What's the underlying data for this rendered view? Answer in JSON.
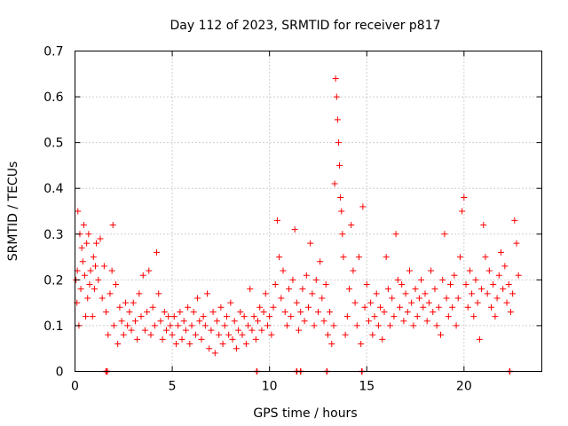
{
  "chart_data": {
    "type": "scatter",
    "title": "Day 112 of 2023, SRMTID for receiver p817",
    "xlabel": "GPS time / hours",
    "ylabel": "SRMTID / TECUs",
    "xlim": [
      0,
      24
    ],
    "ylim": [
      0,
      0.7
    ],
    "xticks": [
      0,
      5,
      10,
      15,
      20
    ],
    "yticks": [
      0,
      0.1,
      0.2,
      0.3,
      0.4,
      0.5,
      0.6,
      0.7
    ],
    "xtick_labels": [
      "0",
      "5",
      "10",
      "15",
      "20"
    ],
    "ytick_labels": [
      "0",
      "0.1",
      "0.2",
      "0.3",
      "0.4",
      "0.5",
      "0.6",
      "0.7"
    ],
    "grid": true,
    "marker": "+",
    "color": "#ff0000",
    "series": [
      {
        "name": "SRMTID",
        "points": [
          [
            0.05,
            0.2
          ],
          [
            0.1,
            0.15
          ],
          [
            0.12,
            0.22
          ],
          [
            0.15,
            0.35
          ],
          [
            0.2,
            0.1
          ],
          [
            0.25,
            0.3
          ],
          [
            0.3,
            0.18
          ],
          [
            0.35,
            0.27
          ],
          [
            0.4,
            0.24
          ],
          [
            0.45,
            0.32
          ],
          [
            0.5,
            0.21
          ],
          [
            0.55,
            0.12
          ],
          [
            0.6,
            0.28
          ],
          [
            0.65,
            0.16
          ],
          [
            0.7,
            0.3
          ],
          [
            0.75,
            0.19
          ],
          [
            0.8,
            0.22
          ],
          [
            0.9,
            0.12
          ],
          [
            0.95,
            0.25
          ],
          [
            1.0,
            0.18
          ],
          [
            1.05,
            0.23
          ],
          [
            1.1,
            0.28
          ],
          [
            1.2,
            0.2
          ],
          [
            1.3,
            0.29
          ],
          [
            1.4,
            0.16
          ],
          [
            1.5,
            0.23
          ],
          [
            1.6,
            0.13
          ],
          [
            1.7,
            0.08
          ],
          [
            1.8,
            0.17
          ],
          [
            1.9,
            0.22
          ],
          [
            1.95,
            0.32
          ],
          [
            2.0,
            0.1
          ],
          [
            2.1,
            0.19
          ],
          [
            2.2,
            0.06
          ],
          [
            2.3,
            0.14
          ],
          [
            2.4,
            0.11
          ],
          [
            2.5,
            0.08
          ],
          [
            2.6,
            0.15
          ],
          [
            2.7,
            0.1
          ],
          [
            2.8,
            0.13
          ],
          [
            2.9,
            0.09
          ],
          [
            3.0,
            0.15
          ],
          [
            3.1,
            0.11
          ],
          [
            3.2,
            0.07
          ],
          [
            3.3,
            0.17
          ],
          [
            3.4,
            0.12
          ],
          [
            3.5,
            0.21
          ],
          [
            3.6,
            0.09
          ],
          [
            3.7,
            0.13
          ],
          [
            3.8,
            0.22
          ],
          [
            3.9,
            0.08
          ],
          [
            4.0,
            0.14
          ],
          [
            4.1,
            0.1
          ],
          [
            4.2,
            0.26
          ],
          [
            4.3,
            0.17
          ],
          [
            4.4,
            0.11
          ],
          [
            4.5,
            0.07
          ],
          [
            4.6,
            0.13
          ],
          [
            4.7,
            0.09
          ],
          [
            4.8,
            0.12
          ],
          [
            4.9,
            0.1
          ],
          [
            5.0,
            0.08
          ],
          [
            5.1,
            0.12
          ],
          [
            5.2,
            0.06
          ],
          [
            5.3,
            0.1
          ],
          [
            5.4,
            0.13
          ],
          [
            5.5,
            0.07
          ],
          [
            5.6,
            0.11
          ],
          [
            5.7,
            0.09
          ],
          [
            5.8,
            0.14
          ],
          [
            5.9,
            0.06
          ],
          [
            6.0,
            0.1
          ],
          [
            6.1,
            0.13
          ],
          [
            6.2,
            0.08
          ],
          [
            6.3,
            0.16
          ],
          [
            6.4,
            0.11
          ],
          [
            6.5,
            0.07
          ],
          [
            6.6,
            0.12
          ],
          [
            6.7,
            0.1
          ],
          [
            6.8,
            0.17
          ],
          [
            6.9,
            0.05
          ],
          [
            7.0,
            0.09
          ],
          [
            7.1,
            0.13
          ],
          [
            7.2,
            0.04
          ],
          [
            7.3,
            0.11
          ],
          [
            7.4,
            0.08
          ],
          [
            7.5,
            0.14
          ],
          [
            7.6,
            0.06
          ],
          [
            7.7,
            0.1
          ],
          [
            7.8,
            0.12
          ],
          [
            7.9,
            0.08
          ],
          [
            8.0,
            0.15
          ],
          [
            8.1,
            0.07
          ],
          [
            8.2,
            0.11
          ],
          [
            8.3,
            0.05
          ],
          [
            8.4,
            0.09
          ],
          [
            8.5,
            0.13
          ],
          [
            8.6,
            0.08
          ],
          [
            8.7,
            0.12
          ],
          [
            8.8,
            0.06
          ],
          [
            8.9,
            0.1
          ],
          [
            9.0,
            0.18
          ],
          [
            9.1,
            0.09
          ],
          [
            9.2,
            0.12
          ],
          [
            9.3,
            0.07
          ],
          [
            9.4,
            0.11
          ],
          [
            9.5,
            0.14
          ],
          [
            9.6,
            0.09
          ],
          [
            9.7,
            0.13
          ],
          [
            9.8,
            0.17
          ],
          [
            9.9,
            0.1
          ],
          [
            10.0,
            0.12
          ],
          [
            10.1,
            0.08
          ],
          [
            10.2,
            0.14
          ],
          [
            10.3,
            0.19
          ],
          [
            10.4,
            0.33
          ],
          [
            10.5,
            0.25
          ],
          [
            10.6,
            0.16
          ],
          [
            10.7,
            0.22
          ],
          [
            10.8,
            0.13
          ],
          [
            10.9,
            0.1
          ],
          [
            11.0,
            0.18
          ],
          [
            11.1,
            0.12
          ],
          [
            11.2,
            0.2
          ],
          [
            11.3,
            0.31
          ],
          [
            11.4,
            0.15
          ],
          [
            11.5,
            0.09
          ],
          [
            11.6,
            0.13
          ],
          [
            11.7,
            0.18
          ],
          [
            11.8,
            0.11
          ],
          [
            11.9,
            0.21
          ],
          [
            12.0,
            0.14
          ],
          [
            12.1,
            0.28
          ],
          [
            12.2,
            0.17
          ],
          [
            12.3,
            0.1
          ],
          [
            12.4,
            0.2
          ],
          [
            12.5,
            0.13
          ],
          [
            12.6,
            0.24
          ],
          [
            12.7,
            0.16
          ],
          [
            12.8,
            0.11
          ],
          [
            12.9,
            0.19
          ],
          [
            13.0,
            0.08
          ],
          [
            13.1,
            0.13
          ],
          [
            13.2,
            0.06
          ],
          [
            13.3,
            0.1
          ],
          [
            13.35,
            0.41
          ],
          [
            13.4,
            0.64
          ],
          [
            13.45,
            0.6
          ],
          [
            13.5,
            0.55
          ],
          [
            13.55,
            0.5
          ],
          [
            13.6,
            0.45
          ],
          [
            13.65,
            0.38
          ],
          [
            13.7,
            0.35
          ],
          [
            13.75,
            0.3
          ],
          [
            13.8,
            0.25
          ],
          [
            13.9,
            0.08
          ],
          [
            14.0,
            0.12
          ],
          [
            14.1,
            0.18
          ],
          [
            14.2,
            0.32
          ],
          [
            14.3,
            0.22
          ],
          [
            14.4,
            0.15
          ],
          [
            14.5,
            0.1
          ],
          [
            14.6,
            0.25
          ],
          [
            14.7,
            0.06
          ],
          [
            14.8,
            0.36
          ],
          [
            14.9,
            0.14
          ],
          [
            15.0,
            0.19
          ],
          [
            15.1,
            0.11
          ],
          [
            15.2,
            0.15
          ],
          [
            15.3,
            0.08
          ],
          [
            15.4,
            0.12
          ],
          [
            15.5,
            0.17
          ],
          [
            15.6,
            0.1
          ],
          [
            15.7,
            0.14
          ],
          [
            15.8,
            0.07
          ],
          [
            15.9,
            0.13
          ],
          [
            16.0,
            0.25
          ],
          [
            16.1,
            0.18
          ],
          [
            16.2,
            0.1
          ],
          [
            16.3,
            0.16
          ],
          [
            16.4,
            0.12
          ],
          [
            16.5,
            0.3
          ],
          [
            16.6,
            0.2
          ],
          [
            16.7,
            0.14
          ],
          [
            16.8,
            0.19
          ],
          [
            16.9,
            0.11
          ],
          [
            17.0,
            0.17
          ],
          [
            17.1,
            0.13
          ],
          [
            17.2,
            0.22
          ],
          [
            17.3,
            0.15
          ],
          [
            17.4,
            0.1
          ],
          [
            17.5,
            0.18
          ],
          [
            17.6,
            0.12
          ],
          [
            17.7,
            0.16
          ],
          [
            17.8,
            0.2
          ],
          [
            17.9,
            0.14
          ],
          [
            18.0,
            0.17
          ],
          [
            18.1,
            0.11
          ],
          [
            18.2,
            0.15
          ],
          [
            18.3,
            0.22
          ],
          [
            18.4,
            0.13
          ],
          [
            18.5,
            0.18
          ],
          [
            18.6,
            0.1
          ],
          [
            18.7,
            0.14
          ],
          [
            18.8,
            0.08
          ],
          [
            18.9,
            0.2
          ],
          [
            19.0,
            0.3
          ],
          [
            19.1,
            0.16
          ],
          [
            19.2,
            0.12
          ],
          [
            19.3,
            0.19
          ],
          [
            19.4,
            0.14
          ],
          [
            19.5,
            0.21
          ],
          [
            19.6,
            0.1
          ],
          [
            19.7,
            0.16
          ],
          [
            19.8,
            0.25
          ],
          [
            19.9,
            0.35
          ],
          [
            20.0,
            0.38
          ],
          [
            20.1,
            0.19
          ],
          [
            20.2,
            0.14
          ],
          [
            20.3,
            0.22
          ],
          [
            20.4,
            0.17
          ],
          [
            20.5,
            0.12
          ],
          [
            20.6,
            0.2
          ],
          [
            20.7,
            0.15
          ],
          [
            20.8,
            0.07
          ],
          [
            20.9,
            0.18
          ],
          [
            21.0,
            0.32
          ],
          [
            21.1,
            0.25
          ],
          [
            21.2,
            0.17
          ],
          [
            21.3,
            0.22
          ],
          [
            21.4,
            0.14
          ],
          [
            21.5,
            0.19
          ],
          [
            21.6,
            0.12
          ],
          [
            21.7,
            0.16
          ],
          [
            21.8,
            0.21
          ],
          [
            21.9,
            0.26
          ],
          [
            22.0,
            0.18
          ],
          [
            22.1,
            0.23
          ],
          [
            22.2,
            0.15
          ],
          [
            22.3,
            0.19
          ],
          [
            22.4,
            0.13
          ],
          [
            22.5,
            0.17
          ],
          [
            22.6,
            0.33
          ],
          [
            22.7,
            0.28
          ],
          [
            22.8,
            0.21
          ]
        ]
      }
    ],
    "bottom_markers_x": [
      1.6,
      1.65,
      9.35,
      11.4,
      11.6,
      12.95,
      14.75,
      22.35
    ]
  }
}
